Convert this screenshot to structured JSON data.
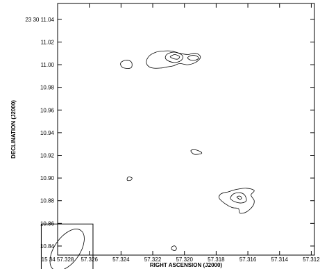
{
  "chart_data": {
    "type": "contour",
    "xlabel": "RIGHT ASCENSION (J2000)",
    "ylabel": "DECLINATION (J2000)",
    "x_axis": {
      "lim": [
        57.328,
        57.3118
      ],
      "ticks": [
        57.328,
        57.326,
        57.324,
        57.322,
        57.32,
        57.318,
        57.316,
        57.314,
        57.312
      ],
      "tick_labels": [
        "15 34 57.328",
        "57.326",
        "57.324",
        "57.322",
        "57.320",
        "57.318",
        "57.316",
        "57.314",
        "57.312"
      ]
    },
    "y_axis": {
      "lim": [
        10.832,
        11.054
      ],
      "ticks": [
        11.04,
        11.02,
        11.0,
        10.98,
        10.96,
        10.94,
        10.92,
        10.9,
        10.88,
        10.86,
        10.84
      ],
      "tick_labels": [
        "23 30 11.04",
        "11.02",
        "11.00",
        "10.98",
        "10.96",
        "10.94",
        "10.92",
        "10.90",
        "10.88",
        "10.86",
        "10.84"
      ]
    },
    "grid": false,
    "contours": [
      {
        "name": "north-source-outer",
        "level": 1,
        "points": [
          [
            57.3224,
            11.003
          ],
          [
            57.3222,
            11.008
          ],
          [
            57.3218,
            11.011
          ],
          [
            57.3214,
            11.012
          ],
          [
            57.3208,
            11.012
          ],
          [
            57.3203,
            11.01
          ],
          [
            57.3198,
            11.009
          ],
          [
            57.3194,
            11.01
          ],
          [
            57.3191,
            11.009
          ],
          [
            57.319,
            11.006
          ],
          [
            57.3193,
            11.002
          ],
          [
            57.3198,
            11.0
          ],
          [
            57.3203,
            11.001
          ],
          [
            57.3207,
            10.999
          ],
          [
            57.3211,
            10.998
          ],
          [
            57.3215,
            10.997
          ],
          [
            57.322,
            10.997
          ],
          [
            57.3223,
            10.999
          ]
        ]
      },
      {
        "name": "north-source-west",
        "level": 1,
        "points": [
          [
            57.324,
            11.002
          ],
          [
            57.3237,
            11.004
          ],
          [
            57.3234,
            11.003
          ],
          [
            57.3233,
            11.0
          ],
          [
            57.3234,
            10.997
          ],
          [
            57.3238,
            10.997
          ],
          [
            57.324,
            10.999
          ]
        ]
      },
      {
        "name": "north-source-mid",
        "level": 2,
        "points": [
          [
            57.3212,
            11.007
          ],
          [
            57.321,
            11.01
          ],
          [
            57.3206,
            11.011
          ],
          [
            57.3202,
            11.009
          ],
          [
            57.3201,
            11.006
          ],
          [
            57.3203,
            11.003
          ],
          [
            57.3207,
            11.002
          ],
          [
            57.3211,
            11.004
          ]
        ]
      },
      {
        "name": "north-source-peak",
        "level": 3,
        "points": [
          [
            57.3209,
            11.007
          ],
          [
            57.3208,
            11.008
          ],
          [
            57.3206,
            11.009
          ],
          [
            57.3204,
            11.008
          ],
          [
            57.3203,
            11.007
          ],
          [
            57.3204,
            11.005
          ],
          [
            57.3206,
            11.005
          ],
          [
            57.3208,
            11.006
          ]
        ]
      },
      {
        "name": "north-source-east",
        "level": 2,
        "points": [
          [
            57.3198,
            11.006
          ],
          [
            57.3196,
            11.008
          ],
          [
            57.3193,
            11.008
          ],
          [
            57.3191,
            11.006
          ],
          [
            57.3193,
            11.004
          ],
          [
            57.3196,
            11.004
          ]
        ]
      },
      {
        "name": "middle-blob",
        "level": 1,
        "points": [
          [
            57.3196,
            10.924
          ],
          [
            57.3194,
            10.925
          ],
          [
            57.3191,
            10.924
          ],
          [
            57.3189,
            10.922
          ],
          [
            57.3191,
            10.921
          ],
          [
            57.3194,
            10.921
          ]
        ]
      },
      {
        "name": "small-blob",
        "level": 1,
        "points": [
          [
            57.3236,
            10.9
          ],
          [
            57.3235,
            10.901
          ],
          [
            57.3233,
            10.9
          ],
          [
            57.3234,
            10.898
          ],
          [
            57.3236,
            10.898
          ]
        ]
      },
      {
        "name": "southeast-source-outer",
        "level": 1,
        "points": [
          [
            57.3174,
            10.877
          ],
          [
            57.3178,
            10.882
          ],
          [
            57.3177,
            10.886
          ],
          [
            57.3172,
            10.888
          ],
          [
            57.3167,
            10.89
          ],
          [
            57.3161,
            10.891
          ],
          [
            57.3156,
            10.889
          ],
          [
            57.3158,
            10.885
          ],
          [
            57.3156,
            10.88
          ],
          [
            57.3157,
            10.875
          ],
          [
            57.3161,
            10.87
          ],
          [
            57.3165,
            10.869
          ],
          [
            57.3166,
            10.873
          ],
          [
            57.317,
            10.874
          ]
        ]
      },
      {
        "name": "southeast-source-mid",
        "level": 2,
        "points": [
          [
            57.3171,
            10.882
          ],
          [
            57.3169,
            10.886
          ],
          [
            57.3165,
            10.887
          ],
          [
            57.3162,
            10.885
          ],
          [
            57.3161,
            10.88
          ],
          [
            57.3164,
            10.878
          ],
          [
            57.3168,
            10.879
          ]
        ]
      },
      {
        "name": "southeast-source-peak",
        "level": 3,
        "points": [
          [
            57.3167,
            10.883
          ],
          [
            57.3166,
            10.884
          ],
          [
            57.3165,
            10.884
          ],
          [
            57.3164,
            10.883
          ],
          [
            57.3164,
            10.882
          ],
          [
            57.3165,
            10.881
          ],
          [
            57.3166,
            10.882
          ]
        ]
      },
      {
        "name": "south-blob",
        "level": 1,
        "points": [
          [
            57.3208,
            10.839
          ],
          [
            57.3207,
            10.84
          ],
          [
            57.3206,
            10.84
          ],
          [
            57.3205,
            10.838
          ],
          [
            57.3206,
            10.836
          ],
          [
            57.3208,
            10.837
          ]
        ]
      }
    ],
    "beam": {
      "ra": 57.3274,
      "dec": 10.8366,
      "major": 0.003,
      "minor": 0.0016
    }
  }
}
